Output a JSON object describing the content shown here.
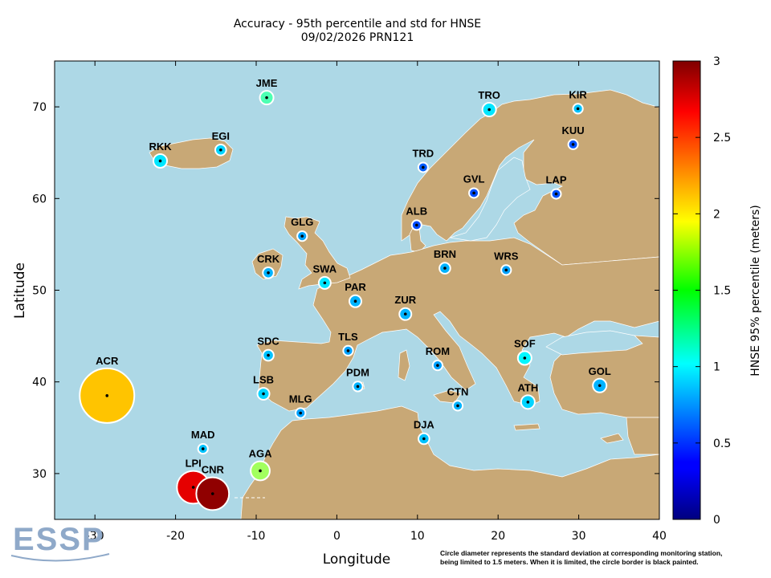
{
  "title": "Accuracy - 95th percentile and std for HNSE",
  "subtitle": "09/02/2026 PRN121",
  "chart_data": {
    "type": "map-scatter",
    "xlabel": "Longitude",
    "ylabel": "Latitude",
    "xlim": [
      -35,
      40
    ],
    "ylim": [
      25,
      75
    ],
    "xticks": [
      -30,
      -20,
      -10,
      0,
      10,
      20,
      30,
      40
    ],
    "yticks": [
      30,
      40,
      50,
      60,
      70
    ],
    "colorbar": {
      "label": "HNSE 95% percentile (meters)",
      "range": [
        0,
        3
      ],
      "ticks": [
        0,
        0.5,
        1,
        1.5,
        2,
        2.5,
        3
      ],
      "colormap": "jet"
    },
    "stations": [
      {
        "name": "JME",
        "lon": -8.7,
        "lat": 71.0,
        "value": 1.35,
        "std": 0.25
      },
      {
        "name": "TRO",
        "lon": 18.9,
        "lat": 69.7,
        "value": 1.05,
        "std": 0.25
      },
      {
        "name": "KIR",
        "lon": 29.9,
        "lat": 69.8,
        "value": 0.95,
        "std": 0.18
      },
      {
        "name": "KUU",
        "lon": 29.3,
        "lat": 65.9,
        "value": 0.62,
        "std": 0.12
      },
      {
        "name": "RKK",
        "lon": -21.9,
        "lat": 64.1,
        "value": 1.05,
        "std": 0.25
      },
      {
        "name": "EGI",
        "lon": -14.4,
        "lat": 65.3,
        "value": 1.0,
        "std": 0.2
      },
      {
        "name": "TRD",
        "lon": 10.7,
        "lat": 63.4,
        "value": 0.65,
        "std": 0.12
      },
      {
        "name": "GVL",
        "lon": 17.0,
        "lat": 60.6,
        "value": 0.6,
        "std": 0.12
      },
      {
        "name": "LAP",
        "lon": 27.2,
        "lat": 60.5,
        "value": 0.62,
        "std": 0.12
      },
      {
        "name": "ALB",
        "lon": 9.9,
        "lat": 57.1,
        "value": 0.6,
        "std": 0.12
      },
      {
        "name": "GLG",
        "lon": -4.3,
        "lat": 55.9,
        "value": 0.85,
        "std": 0.18
      },
      {
        "name": "CRK",
        "lon": -8.5,
        "lat": 51.9,
        "value": 0.9,
        "std": 0.2
      },
      {
        "name": "BRN",
        "lon": 13.4,
        "lat": 52.4,
        "value": 0.9,
        "std": 0.2
      },
      {
        "name": "WRS",
        "lon": 21.0,
        "lat": 52.2,
        "value": 0.85,
        "std": 0.18
      },
      {
        "name": "SWA",
        "lon": -1.5,
        "lat": 50.8,
        "value": 1.05,
        "std": 0.22
      },
      {
        "name": "PAR",
        "lon": 2.3,
        "lat": 48.8,
        "value": 0.9,
        "std": 0.22
      },
      {
        "name": "ZUR",
        "lon": 8.5,
        "lat": 47.4,
        "value": 0.9,
        "std": 0.22
      },
      {
        "name": "TLS",
        "lon": 1.4,
        "lat": 43.4,
        "value": 0.85,
        "std": 0.18
      },
      {
        "name": "SDC",
        "lon": -8.5,
        "lat": 42.9,
        "value": 0.95,
        "std": 0.2
      },
      {
        "name": "ROM",
        "lon": 12.5,
        "lat": 41.8,
        "value": 0.85,
        "std": 0.18
      },
      {
        "name": "SOF",
        "lon": 23.3,
        "lat": 42.6,
        "value": 1.1,
        "std": 0.25
      },
      {
        "name": "PDM",
        "lon": 2.6,
        "lat": 39.5,
        "value": 0.9,
        "std": 0.18
      },
      {
        "name": "GOL",
        "lon": 32.6,
        "lat": 39.6,
        "value": 0.9,
        "std": 0.25
      },
      {
        "name": "LSB",
        "lon": -9.1,
        "lat": 38.7,
        "value": 1.0,
        "std": 0.22
      },
      {
        "name": "ATH",
        "lon": 23.7,
        "lat": 37.8,
        "value": 1.0,
        "std": 0.25
      },
      {
        "name": "MLG",
        "lon": -4.5,
        "lat": 36.6,
        "value": 0.85,
        "std": 0.18
      },
      {
        "name": "CTN",
        "lon": 15.0,
        "lat": 37.4,
        "value": 0.9,
        "std": 0.18
      },
      {
        "name": "DJA",
        "lon": 10.8,
        "lat": 33.8,
        "value": 0.95,
        "std": 0.2
      },
      {
        "name": "MAD",
        "lon": -16.6,
        "lat": 32.7,
        "value": 0.95,
        "std": 0.18
      },
      {
        "name": "AGA",
        "lon": -9.5,
        "lat": 30.3,
        "value": 1.6,
        "std": 0.35
      },
      {
        "name": "ACR",
        "lon": -28.5,
        "lat": 38.5,
        "value": 2.05,
        "std": 1.0
      },
      {
        "name": "LPI",
        "lon": -17.8,
        "lat": 28.5,
        "value": 2.7,
        "std": 0.6
      },
      {
        "name": "CNR",
        "lon": -15.4,
        "lat": 27.8,
        "value": 2.95,
        "std": 0.6
      }
    ]
  },
  "footnote": {
    "line1": "Circle diameter represents the standard deviation at corresponding monitoring station,",
    "line2": "being limited to 1.5 meters. When it is limited, the circle border is black painted."
  },
  "logo_text": "ESSP",
  "colors": {
    "sea": "#add8e6",
    "land": "#c8a876"
  }
}
